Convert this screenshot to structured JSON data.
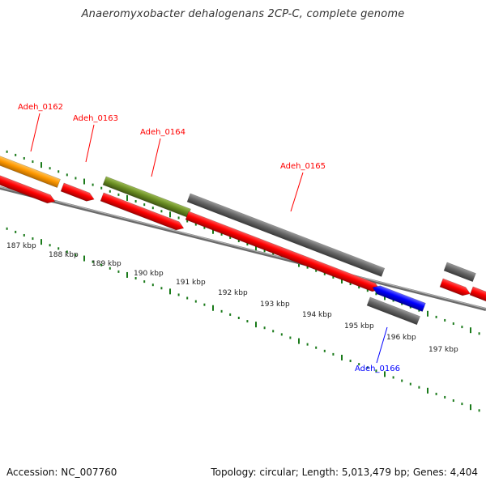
{
  "title": "Anaeromyxobacter dehalogenans 2CP-C, complete genome",
  "footer": {
    "accession": "Accession: NC_007760",
    "summary": "Topology: circular; Length: 5,013,479 bp; Genes: 4,404"
  },
  "colors": {
    "red": "#ff0000",
    "orange": "#ff9900",
    "olive": "#6b8e23",
    "gray": "#606060",
    "blue": "#0000ff",
    "tick_green": "#1a7a1a",
    "backbone": "#808080"
  },
  "kbp_labels": [
    "187 kbp",
    "188 kbp",
    "189 kbp",
    "190 kbp",
    "191 kbp",
    "192 kbp",
    "193 kbp",
    "194 kbp",
    "195 kbp",
    "196 kbp",
    "197 kbp"
  ],
  "gene_labels": [
    {
      "text": "Adeh_0162",
      "color": "red"
    },
    {
      "text": "Adeh_0163",
      "color": "red"
    },
    {
      "text": "Adeh_0164",
      "color": "red"
    },
    {
      "text": "Adeh_0165",
      "color": "red"
    },
    {
      "text": "Adeh_0166",
      "color": "blue"
    }
  ]
}
